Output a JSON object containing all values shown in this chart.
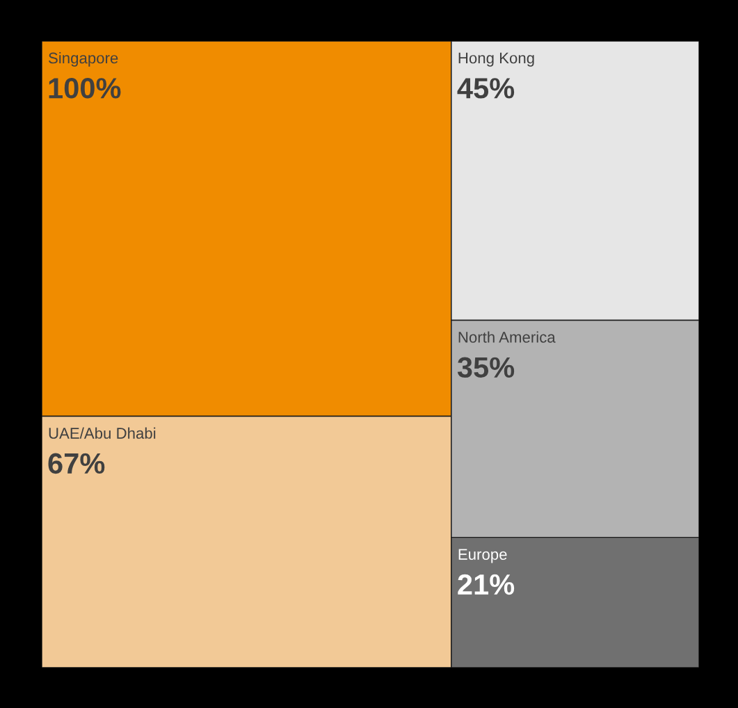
{
  "chart_data": {
    "type": "other",
    "categories": [
      "Singapore",
      "UAE/Abu Dhabi",
      "Hong Kong",
      "North America",
      "Europe"
    ],
    "values": [
      100,
      67,
      45,
      35,
      21
    ],
    "value_labels": [
      "100%",
      "67%",
      "45%",
      "35%",
      "21%"
    ],
    "colors": [
      "#f08c00",
      "#f2c996",
      "#e6e6e6",
      "#b3b3b3",
      "#707070"
    ]
  }
}
